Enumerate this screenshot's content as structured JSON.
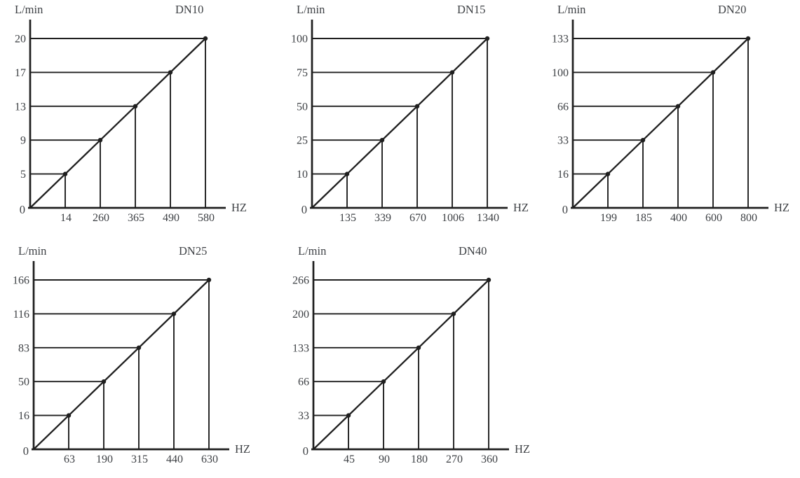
{
  "page": {
    "background": "#ffffff",
    "ink": "#1f1f1f",
    "text_color": "#3e4145"
  },
  "chart_data": [
    {
      "type": "line",
      "title": "DN10",
      "ylabel": "L/min",
      "xlabel": "HZ",
      "origin_label": "0",
      "x_ticks": [
        "14",
        "260",
        "365",
        "490",
        "580"
      ],
      "y_ticks": [
        "5",
        "9",
        "13",
        "17",
        "20"
      ],
      "points": [
        {
          "hz": 14,
          "lmin": 5
        },
        {
          "hz": 260,
          "lmin": 9
        },
        {
          "hz": 365,
          "lmin": 13
        },
        {
          "hz": 490,
          "lmin": 17
        },
        {
          "hz": 580,
          "lmin": 20
        }
      ],
      "layout": {
        "tick_spacing": "uniform",
        "grid": "step-lines-to-diagonal",
        "legend": "none"
      }
    },
    {
      "type": "line",
      "title": "DN15",
      "ylabel": "L/min",
      "xlabel": "HZ",
      "origin_label": "0",
      "x_ticks": [
        "135",
        "339",
        "670",
        "1006",
        "1340"
      ],
      "y_ticks": [
        "10",
        "25",
        "50",
        "75",
        "100"
      ],
      "points": [
        {
          "hz": 135,
          "lmin": 10
        },
        {
          "hz": 339,
          "lmin": 25
        },
        {
          "hz": 670,
          "lmin": 50
        },
        {
          "hz": 1006,
          "lmin": 75
        },
        {
          "hz": 1340,
          "lmin": 100
        }
      ],
      "layout": {
        "tick_spacing": "uniform",
        "grid": "step-lines-to-diagonal",
        "legend": "none"
      }
    },
    {
      "type": "line",
      "title": "DN20",
      "ylabel": "L/min",
      "xlabel": "HZ",
      "origin_label": "0",
      "x_ticks": [
        "199",
        "185",
        "400",
        "600",
        "800"
      ],
      "y_ticks": [
        "16",
        "33",
        "66",
        "100",
        "133"
      ],
      "points": [
        {
          "hz": 199,
          "lmin": 16
        },
        {
          "hz": 185,
          "lmin": 33
        },
        {
          "hz": 400,
          "lmin": 66
        },
        {
          "hz": 600,
          "lmin": 100
        },
        {
          "hz": 800,
          "lmin": 133
        }
      ],
      "layout": {
        "tick_spacing": "uniform",
        "grid": "step-lines-to-diagonal",
        "legend": "none"
      }
    },
    {
      "type": "line",
      "title": "DN25",
      "ylabel": "L/min",
      "xlabel": "HZ",
      "origin_label": "0",
      "x_ticks": [
        "63",
        "190",
        "315",
        "440",
        "630"
      ],
      "y_ticks": [
        "16",
        "50",
        "83",
        "116",
        "166"
      ],
      "points": [
        {
          "hz": 63,
          "lmin": 16
        },
        {
          "hz": 190,
          "lmin": 50
        },
        {
          "hz": 315,
          "lmin": 83
        },
        {
          "hz": 440,
          "lmin": 116
        },
        {
          "hz": 630,
          "lmin": 166
        }
      ],
      "layout": {
        "tick_spacing": "uniform",
        "grid": "step-lines-to-diagonal",
        "legend": "none"
      }
    },
    {
      "type": "line",
      "title": "DN40",
      "ylabel": "L/min",
      "xlabel": "HZ",
      "origin_label": "0",
      "x_ticks": [
        "45",
        "90",
        "180",
        "270",
        "360"
      ],
      "y_ticks": [
        "33",
        "66",
        "133",
        "200",
        "266"
      ],
      "points": [
        {
          "hz": 45,
          "lmin": 33
        },
        {
          "hz": 90,
          "lmin": 66
        },
        {
          "hz": 180,
          "lmin": 133
        },
        {
          "hz": 270,
          "lmin": 200
        },
        {
          "hz": 360,
          "lmin": 266
        }
      ],
      "layout": {
        "tick_spacing": "uniform",
        "grid": "step-lines-to-diagonal",
        "legend": "none"
      }
    }
  ]
}
